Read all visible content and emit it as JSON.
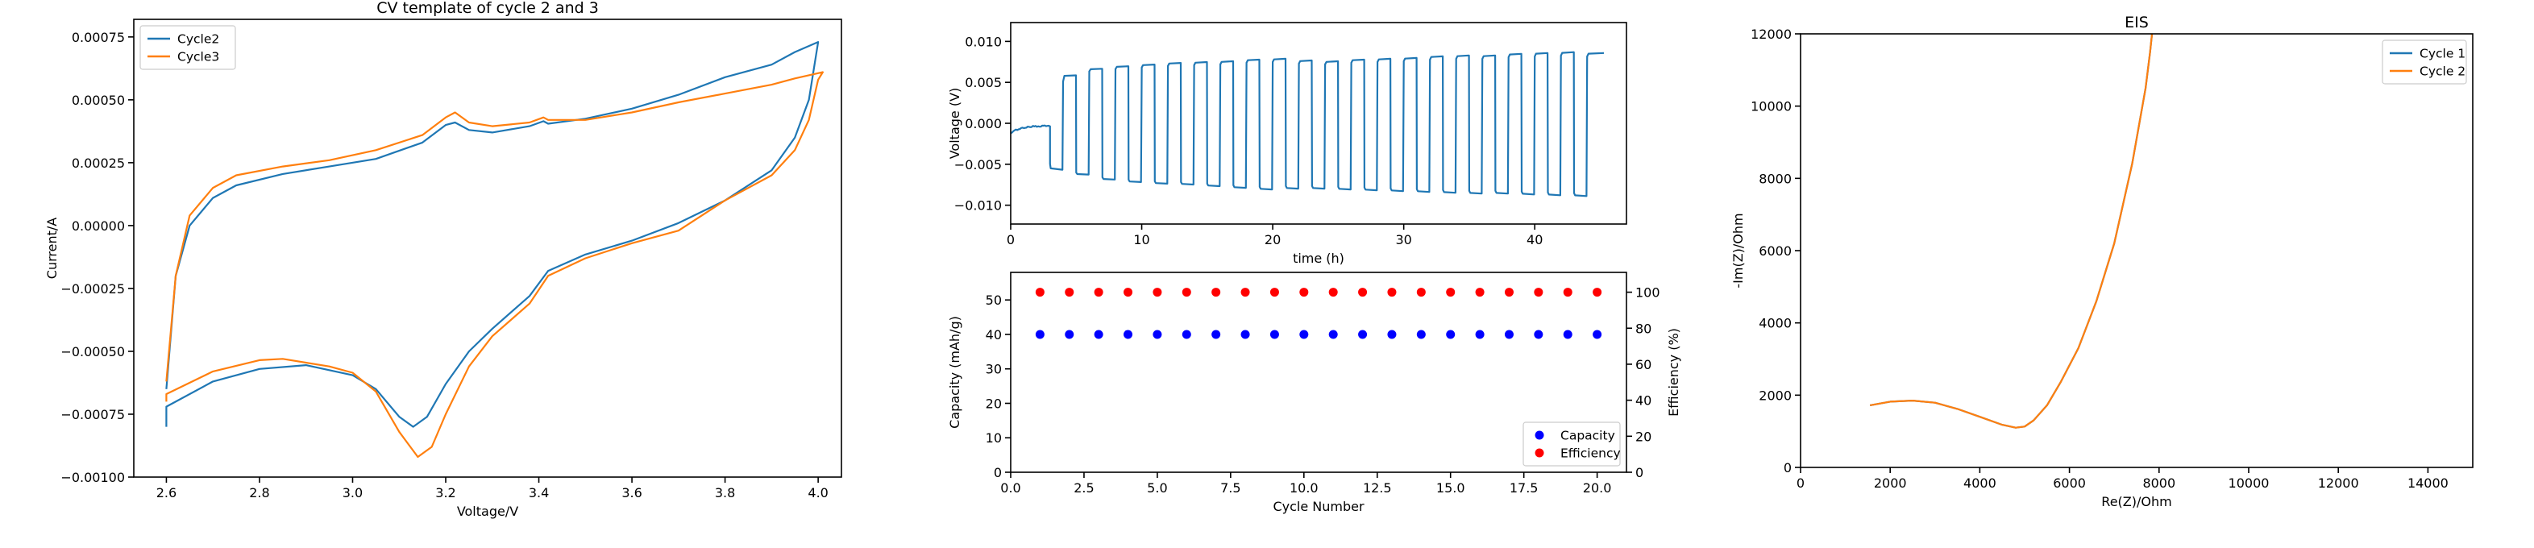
{
  "colors": {
    "blue": "#1f77b4",
    "orange": "#ff7f0e",
    "marker_blue": "#0000ff",
    "marker_red": "#ff0000"
  },
  "chart_data": [
    {
      "id": "cv",
      "type": "line",
      "title": "CV template of cycle 2 and 3",
      "xlabel": "Voltage/V",
      "ylabel": "Current/A",
      "xlim": [
        2.53,
        4.05
      ],
      "ylim": [
        -0.001,
        0.00082
      ],
      "xticks": [
        2.6,
        2.8,
        3.0,
        3.2,
        3.4,
        3.6,
        3.8,
        4.0
      ],
      "xtick_labels": [
        "2.6",
        "2.8",
        "3.0",
        "3.2",
        "3.4",
        "3.6",
        "3.8",
        "4.0"
      ],
      "yticks": [
        -0.001,
        -0.00075,
        -0.0005,
        -0.00025,
        0,
        0.00025,
        0.0005,
        0.00075
      ],
      "ytick_labels": [
        "−0.00100",
        "−0.00075",
        "−0.00050",
        "−0.00025",
        "0.00000",
        "0.00025",
        "0.00050",
        "0.00075"
      ],
      "legend": "upper-left",
      "grid": false,
      "series": [
        {
          "name": "Cycle2",
          "color_key": "blue",
          "points": [
            [
              2.6,
              -0.0008
            ],
            [
              2.6,
              -0.00072
            ],
            [
              2.7,
              -0.00062
            ],
            [
              2.8,
              -0.00057
            ],
            [
              2.9,
              -0.000555
            ],
            [
              3.0,
              -0.000595
            ],
            [
              3.05,
              -0.00065
            ],
            [
              3.1,
              -0.00076
            ],
            [
              3.13,
              -0.0008
            ],
            [
              3.16,
              -0.00076
            ],
            [
              3.2,
              -0.00063
            ],
            [
              3.25,
              -0.0005
            ],
            [
              3.3,
              -0.00041
            ],
            [
              3.38,
              -0.00028
            ],
            [
              3.42,
              -0.00018
            ],
            [
              3.5,
              -0.000115
            ],
            [
              3.6,
              -6e-05
            ],
            [
              3.7,
              1e-05
            ],
            [
              3.8,
              0.0001
            ],
            [
              3.9,
              0.00022
            ],
            [
              3.95,
              0.00035
            ],
            [
              3.98,
              0.0005
            ],
            [
              4.0,
              0.00073
            ],
            [
              3.95,
              0.00069
            ],
            [
              3.9,
              0.00064
            ],
            [
              3.8,
              0.00059
            ],
            [
              3.7,
              0.00052
            ],
            [
              3.6,
              0.000465
            ],
            [
              3.5,
              0.000425
            ],
            [
              3.42,
              0.000405
            ],
            [
              3.41,
              0.000415
            ],
            [
              3.38,
              0.000395
            ],
            [
              3.3,
              0.00037
            ],
            [
              3.25,
              0.00038
            ],
            [
              3.22,
              0.00041
            ],
            [
              3.2,
              0.0004
            ],
            [
              3.15,
              0.00033
            ],
            [
              3.05,
              0.000265
            ],
            [
              2.95,
              0.000235
            ],
            [
              2.85,
              0.000205
            ],
            [
              2.75,
              0.00016
            ],
            [
              2.7,
              0.00011
            ],
            [
              2.65,
              0.0
            ],
            [
              2.62,
              -0.0002
            ],
            [
              2.6,
              -0.00065
            ]
          ]
        },
        {
          "name": "Cycle3",
          "color_key": "orange",
          "points": [
            [
              2.6,
              -0.0007
            ],
            [
              2.6,
              -0.00067
            ],
            [
              2.7,
              -0.00058
            ],
            [
              2.8,
              -0.000535
            ],
            [
              2.85,
              -0.00053
            ],
            [
              2.95,
              -0.00056
            ],
            [
              3.0,
              -0.000585
            ],
            [
              3.05,
              -0.00066
            ],
            [
              3.1,
              -0.00082
            ],
            [
              3.14,
              -0.00092
            ],
            [
              3.17,
              -0.00088
            ],
            [
              3.2,
              -0.00075
            ],
            [
              3.25,
              -0.00056
            ],
            [
              3.3,
              -0.00044
            ],
            [
              3.38,
              -0.00031
            ],
            [
              3.42,
              -0.0002
            ],
            [
              3.5,
              -0.00013
            ],
            [
              3.6,
              -7e-05
            ],
            [
              3.7,
              -2e-05
            ],
            [
              3.8,
              0.0001
            ],
            [
              3.9,
              0.0002
            ],
            [
              3.95,
              0.0003
            ],
            [
              3.98,
              0.00042
            ],
            [
              4.0,
              0.00058
            ],
            [
              4.01,
              0.00061
            ],
            [
              3.95,
              0.000585
            ],
            [
              3.9,
              0.00056
            ],
            [
              3.8,
              0.000525
            ],
            [
              3.7,
              0.00049
            ],
            [
              3.6,
              0.00045
            ],
            [
              3.5,
              0.00042
            ],
            [
              3.42,
              0.00042
            ],
            [
              3.41,
              0.00043
            ],
            [
              3.38,
              0.00041
            ],
            [
              3.3,
              0.000395
            ],
            [
              3.25,
              0.00041
            ],
            [
              3.22,
              0.00045
            ],
            [
              3.2,
              0.00043
            ],
            [
              3.15,
              0.00036
            ],
            [
              3.05,
              0.0003
            ],
            [
              2.95,
              0.00026
            ],
            [
              2.85,
              0.000235
            ],
            [
              2.75,
              0.0002
            ],
            [
              2.7,
              0.00015
            ],
            [
              2.65,
              4e-05
            ],
            [
              2.62,
              -0.0002
            ],
            [
              2.6,
              -0.00062
            ]
          ]
        }
      ]
    },
    {
      "id": "voltage",
      "type": "line",
      "title": "",
      "xlabel": "time (h)",
      "ylabel": "Voltage (V)",
      "xlim": [
        0,
        47
      ],
      "ylim": [
        -0.0123,
        0.0123
      ],
      "xticks": [
        0,
        10,
        20,
        30,
        40
      ],
      "xtick_labels": [
        "0",
        "10",
        "20",
        "30",
        "40"
      ],
      "yticks": [
        -0.01,
        -0.005,
        0,
        0.005,
        0.01
      ],
      "ytick_labels": [
        "−0.010",
        "−0.005",
        "0.000",
        "0.005",
        "0.010"
      ],
      "grid": false,
      "series": [
        {
          "name": "",
          "color_key": "blue",
          "rest_end": 3.0,
          "rest_start_v": -0.0012,
          "rest_end_v": -0.0003,
          "pulse_start_t": [
            3,
            5,
            7,
            9,
            11,
            13,
            15,
            17,
            19,
            21,
            23,
            25,
            27,
            29,
            31,
            33,
            35,
            37,
            39,
            41,
            43
          ],
          "charge_v": [
            0.0058,
            0.0066,
            0.0069,
            0.0071,
            0.0073,
            0.0074,
            0.0075,
            0.0077,
            0.0078,
            0.0076,
            0.0075,
            0.0077,
            0.0078,
            0.0079,
            0.0081,
            0.0082,
            0.0082,
            0.0084,
            0.0085,
            0.0086,
            0.0085
          ],
          "discharge_v": [
            -0.0055,
            -0.0062,
            -0.0068,
            -0.0071,
            -0.0073,
            -0.0074,
            -0.0076,
            -0.0078,
            -0.008,
            -0.0079,
            -0.0079,
            -0.008,
            -0.0081,
            -0.0082,
            -0.0083,
            -0.0084,
            -0.0085,
            -0.0085,
            -0.0086,
            -0.0087,
            -0.0088
          ],
          "end_t": 45.3
        }
      ]
    },
    {
      "id": "capacity",
      "type": "scatter",
      "title": "",
      "xlabel": "Cycle Number",
      "ylabel": "Capacity (mAh/g)",
      "ylabel_right": "Efficiency (%)",
      "xlim": [
        0,
        21
      ],
      "ylim": [
        0,
        58
      ],
      "ylim_right": [
        0,
        111
      ],
      "xticks": [
        0,
        2.5,
        5,
        7.5,
        10,
        12.5,
        15,
        17.5,
        20
      ],
      "xtick_labels": [
        "0.0",
        "2.5",
        "5.0",
        "7.5",
        "10.0",
        "12.5",
        "15.0",
        "17.5",
        "20.0"
      ],
      "yticks": [
        0,
        10,
        20,
        30,
        40,
        50
      ],
      "ytick_labels": [
        "0",
        "10",
        "20",
        "30",
        "40",
        "50"
      ],
      "yticks_right": [
        0,
        20,
        40,
        60,
        80,
        100
      ],
      "ytick_labels_right": [
        "0",
        "20",
        "40",
        "60",
        "80",
        "100"
      ],
      "legend": "lower-right",
      "grid": false,
      "x": [
        1,
        2,
        3,
        4,
        5,
        6,
        7,
        8,
        9,
        10,
        11,
        12,
        13,
        14,
        15,
        16,
        17,
        18,
        19,
        20
      ],
      "series": [
        {
          "name": "Capacity",
          "axis": "left",
          "color_key": "marker_blue",
          "values": [
            40,
            40,
            40,
            40,
            40,
            40,
            40,
            40,
            40,
            40,
            40,
            40,
            40,
            40,
            40,
            40,
            40,
            40,
            40,
            40
          ]
        },
        {
          "name": "Efficiency",
          "axis": "right",
          "color_key": "marker_red",
          "values": [
            100,
            100,
            100,
            100,
            100,
            100,
            100,
            100,
            100,
            100,
            100,
            100,
            100,
            100,
            100,
            100,
            100,
            100,
            100,
            100
          ]
        }
      ]
    },
    {
      "id": "eis",
      "type": "line",
      "title": "EIS",
      "xlabel": "Re(Z)/Ohm",
      "ylabel": "-Im(Z)/Ohm",
      "xlim": [
        0,
        15000
      ],
      "ylim": [
        0,
        12000
      ],
      "xticks": [
        0,
        2000,
        4000,
        6000,
        8000,
        10000,
        12000,
        14000
      ],
      "xtick_labels": [
        "0",
        "2000",
        "4000",
        "6000",
        "8000",
        "10000",
        "12000",
        "14000"
      ],
      "yticks": [
        0,
        2000,
        4000,
        6000,
        8000,
        10000,
        12000
      ],
      "ytick_labels": [
        "0",
        "2000",
        "4000",
        "6000",
        "8000",
        "10000",
        "12000"
      ],
      "legend": "upper-right",
      "grid": false,
      "series": [
        {
          "name": "Cycle 1",
          "color_key": "blue",
          "points": [
            [
              1550,
              1720
            ],
            [
              2000,
              1820
            ],
            [
              2500,
              1850
            ],
            [
              3000,
              1790
            ],
            [
              3500,
              1620
            ],
            [
              4000,
              1400
            ],
            [
              4500,
              1180
            ],
            [
              4800,
              1100
            ],
            [
              5000,
              1130
            ],
            [
              5200,
              1300
            ],
            [
              5500,
              1720
            ],
            [
              5800,
              2350
            ],
            [
              6200,
              3300
            ],
            [
              6600,
              4600
            ],
            [
              7000,
              6200
            ],
            [
              7400,
              8400
            ],
            [
              7700,
              10500
            ],
            [
              7800,
              11500
            ],
            [
              7860,
              12200
            ]
          ]
        },
        {
          "name": "Cycle 2",
          "color_key": "orange",
          "points": [
            [
              1550,
              1720
            ],
            [
              2000,
              1820
            ],
            [
              2500,
              1850
            ],
            [
              3000,
              1790
            ],
            [
              3500,
              1620
            ],
            [
              4000,
              1400
            ],
            [
              4500,
              1180
            ],
            [
              4800,
              1100
            ],
            [
              5000,
              1130
            ],
            [
              5200,
              1300
            ],
            [
              5500,
              1720
            ],
            [
              5800,
              2350
            ],
            [
              6200,
              3300
            ],
            [
              6600,
              4600
            ],
            [
              7000,
              6200
            ],
            [
              7400,
              8400
            ],
            [
              7700,
              10500
            ],
            [
              7800,
              11500
            ],
            [
              7860,
              12200
            ]
          ]
        }
      ]
    }
  ]
}
